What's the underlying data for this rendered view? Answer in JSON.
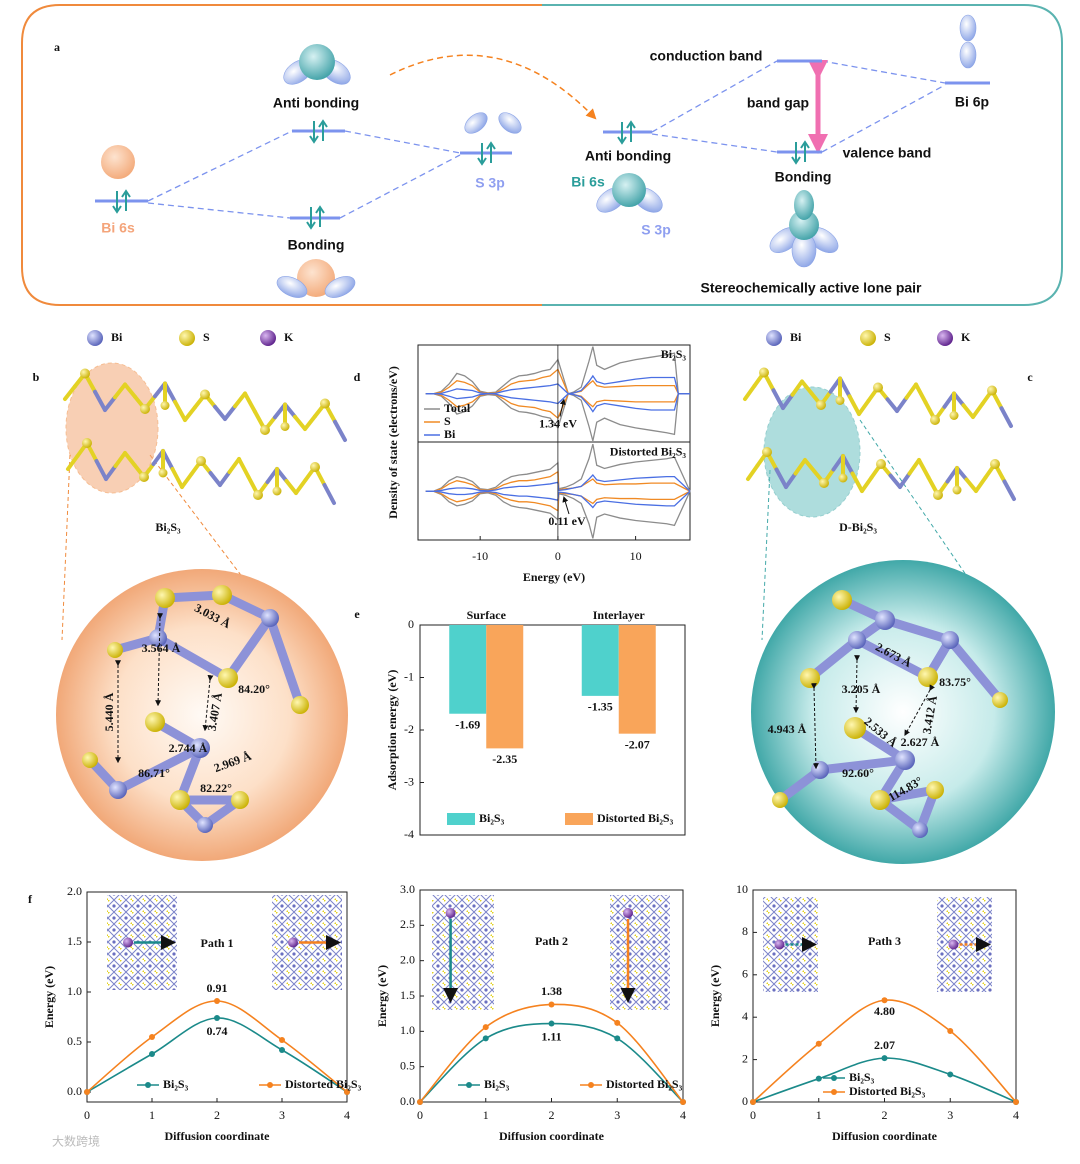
{
  "panels": {
    "a": {
      "letter": "a",
      "labels": [
        "Anti bonding",
        "Bonding",
        "Bi 6s",
        "S 3p",
        "Anti bonding",
        "Bi 6s",
        "S 3p",
        "conduction band",
        "band gap",
        "valence band",
        "Bonding",
        "Bi 6p",
        "Stereochemically active lone pair"
      ]
    },
    "b": {
      "letter": "b",
      "legend": [
        "Bi",
        "S",
        "K"
      ],
      "title": "Bi₂S₃",
      "measurements": [
        "3.033 Å",
        "3.564 Å",
        "5.440 Å",
        "3.407 Å",
        "84.20°",
        "2.744 Å",
        "2.969 Å",
        "86.71°",
        "82.22°"
      ]
    },
    "c": {
      "letter": "c",
      "legend": [
        "Bi",
        "S",
        "K"
      ],
      "title": "D-Bi₂S₃",
      "measurements": [
        "2.673 Å",
        "3.205 Å",
        "4.943 Å",
        "3.412 Å",
        "83.75°",
        "2.533 Å",
        "2.627 Å",
        "92.60°",
        "114.83°"
      ]
    },
    "d": {
      "letter": "d"
    },
    "e": {
      "letter": "e"
    },
    "f": {
      "letter": "f"
    }
  },
  "watermark": "大数跨境",
  "chart_data": [
    {
      "type": "dos",
      "y_label": "Density of state (electrons/eV)",
      "x_label": "Energy (eV)",
      "xlim": [
        -18,
        17
      ],
      "xticks": [
        -10,
        0,
        10
      ],
      "ylim": [
        -6,
        6
      ],
      "series": [
        {
          "name": "Total",
          "color": "#8c8c8c"
        },
        {
          "name": "S",
          "color": "#f08a24"
        },
        {
          "name": "Bi",
          "color": "#4a6fe3"
        }
      ],
      "subplots": [
        {
          "label": "Bi₂S₃",
          "annotation": "1.34 eV",
          "x": [
            -17,
            -16,
            -15,
            -14,
            -13,
            -12,
            -11,
            -10,
            -9,
            -8,
            -7,
            -6,
            -5,
            -4,
            -3,
            -2,
            -1,
            0,
            1.34,
            2,
            3,
            4,
            4.5,
            5,
            6,
            8,
            10,
            12,
            14,
            15,
            15.5,
            17
          ],
          "series": [
            {
              "values": [
                0,
                0,
                0.3,
                1.2,
                2.5,
                2.2,
                1.5,
                0.3,
                0.1,
                0.2,
                1,
                1.8,
                2.2,
                2.3,
                2.5,
                2.8,
                3,
                4.2,
                0,
                0.2,
                0.8,
                4,
                5.8,
                3.5,
                3,
                3.8,
                4.2,
                4.5,
                4.8,
                5,
                0,
                0
              ]
            },
            {
              "values": [
                0,
                0,
                0.2,
                0.8,
                1.6,
                1.4,
                1,
                0.2,
                0.05,
                0.1,
                0.6,
                1.2,
                1.5,
                1.6,
                1.7,
                2,
                2.2,
                3,
                0,
                0.1,
                0.3,
                1.2,
                1.6,
                1,
                0.8,
                0.9,
                1,
                1,
                1,
                1,
                0,
                0
              ]
            },
            {
              "values": [
                0,
                0,
                0.05,
                0.3,
                0.6,
                0.5,
                0.4,
                0.1,
                0,
                0.05,
                0.3,
                0.5,
                0.6,
                0.7,
                0.8,
                0.9,
                1,
                1.2,
                0,
                0.1,
                0.4,
                1.5,
                2.2,
                1.5,
                1.2,
                1.5,
                1.8,
                2,
                2,
                2,
                0,
                0
              ]
            }
          ]
        },
        {
          "label": "Distorted Bi₂S₃",
          "annotation": "0.11 eV",
          "x": [
            -17,
            -16,
            -15,
            -14,
            -13,
            -12,
            -11,
            -10,
            -9,
            -8,
            -7,
            -6,
            -5,
            -4,
            -3,
            -2,
            -1,
            0,
            0.11,
            1,
            2,
            3,
            4,
            4.5,
            5,
            6,
            8,
            10,
            12,
            14,
            15,
            17
          ],
          "series": [
            {
              "values": [
                0,
                0,
                0.4,
                1.3,
                1.8,
                1.6,
                1.2,
                0.3,
                0.2,
                0.5,
                1.3,
                1.8,
                2,
                2.1,
                2.3,
                2.5,
                2.7,
                3.5,
                0.3,
                0.5,
                0.9,
                1.5,
                4,
                5.8,
                3.2,
                2.8,
                3.3,
                3.6,
                3.8,
                4,
                4.2,
                0
              ]
            },
            {
              "values": [
                0,
                0,
                0.3,
                0.9,
                1.3,
                1.1,
                0.8,
                0.2,
                0.1,
                0.3,
                0.8,
                1.1,
                1.3,
                1.3,
                1.4,
                1.6,
                1.8,
                2.4,
                0.2,
                0.3,
                0.4,
                0.6,
                1.2,
                1.5,
                1,
                0.8,
                0.9,
                0.9,
                1,
                1,
                1,
                0
              ]
            },
            {
              "values": [
                0,
                0,
                0.1,
                0.3,
                0.4,
                0.4,
                0.3,
                0.1,
                0.05,
                0.15,
                0.4,
                0.5,
                0.6,
                0.6,
                0.7,
                0.8,
                0.9,
                1.1,
                0.1,
                0.2,
                0.4,
                0.6,
                1.5,
                2,
                1.4,
                1.2,
                1.4,
                1.6,
                1.7,
                1.8,
                1.8,
                0
              ]
            }
          ]
        }
      ]
    },
    {
      "type": "bar",
      "categories": [
        "Surface",
        "Interlayer"
      ],
      "y_label": "Adsorption energy (eV)",
      "ylim": [
        -4,
        0
      ],
      "yticks": [
        0,
        -1,
        -2,
        -3,
        -4
      ],
      "series": [
        {
          "name": "Bi₂S₃",
          "color": "#4fd1cc",
          "values": [
            -1.69,
            -1.35
          ]
        },
        {
          "name": "Distorted Bi₂S₃",
          "color": "#f9a55a",
          "values": [
            -2.35,
            -2.07
          ]
        }
      ]
    },
    {
      "type": "line",
      "title": "Path 1",
      "x": [
        0,
        1,
        2,
        3,
        4
      ],
      "xlim": [
        0,
        4
      ],
      "xticks": [
        0,
        1,
        2,
        3,
        4
      ],
      "ylim": [
        -0.1,
        2.0
      ],
      "yticks": [
        {
          "value": 0,
          "label": "0.0"
        },
        0.5,
        {
          "value": 1,
          "label": "1.0"
        },
        1.5,
        {
          "value": 2,
          "label": "2.0"
        }
      ],
      "y_label": "Energy (eV)",
      "x_label": "Diffusion coordinate",
      "series": [
        {
          "name": "Bi₂S₃",
          "color": "#1b8a8a",
          "values": [
            0,
            0.38,
            0.74,
            0.42,
            0
          ]
        },
        {
          "name": "Distorted Bi₂S₃",
          "color": "#f5821f",
          "values": [
            0,
            0.55,
            0.91,
            0.52,
            0
          ]
        }
      ]
    },
    {
      "type": "line",
      "title": "Path 2",
      "x": [
        0,
        1,
        2,
        3,
        4
      ],
      "xlim": [
        0,
        4
      ],
      "xticks": [
        0,
        1,
        2,
        3,
        4
      ],
      "ylim": [
        0,
        3
      ],
      "yticks": [
        {
          "value": 0,
          "label": "0.0"
        },
        0.5,
        {
          "value": 1,
          "label": "1.0"
        },
        1.5,
        {
          "value": 2,
          "label": "2.0"
        },
        2.5,
        {
          "value": 3,
          "label": "3.0"
        }
      ],
      "y_label": "Energy (eV)",
      "x_label": "Diffusion coordinate",
      "series": [
        {
          "name": "Bi₂S₃",
          "color": "#1b8a8a",
          "values": [
            0,
            0.9,
            1.11,
            0.9,
            0
          ]
        },
        {
          "name": "Distorted Bi₂S₃",
          "color": "#f5821f",
          "values": [
            0,
            1.06,
            1.38,
            1.12,
            0
          ]
        }
      ]
    },
    {
      "type": "line",
      "title": "Path 3",
      "x": [
        0,
        1,
        2,
        3,
        4
      ],
      "xlim": [
        0,
        4
      ],
      "xticks": [
        0,
        1,
        2,
        3,
        4
      ],
      "ylim": [
        0,
        10
      ],
      "yticks": [
        0,
        2,
        4,
        6,
        8,
        10
      ],
      "y_label": "Energy (eV)",
      "x_label": "Diffusion coordinate",
      "series": [
        {
          "name": "Bi₂S₃",
          "color": "#1b8a8a",
          "values": [
            0,
            1.1,
            2.07,
            1.3,
            0
          ]
        },
        {
          "name": "Distorted Bi₂S₃",
          "color": "#f5821f",
          "values": [
            0,
            2.75,
            4.8,
            3.35,
            0
          ],
          "value_labels": [
            null,
            null,
            "4.80",
            null,
            null
          ]
        }
      ]
    }
  ]
}
